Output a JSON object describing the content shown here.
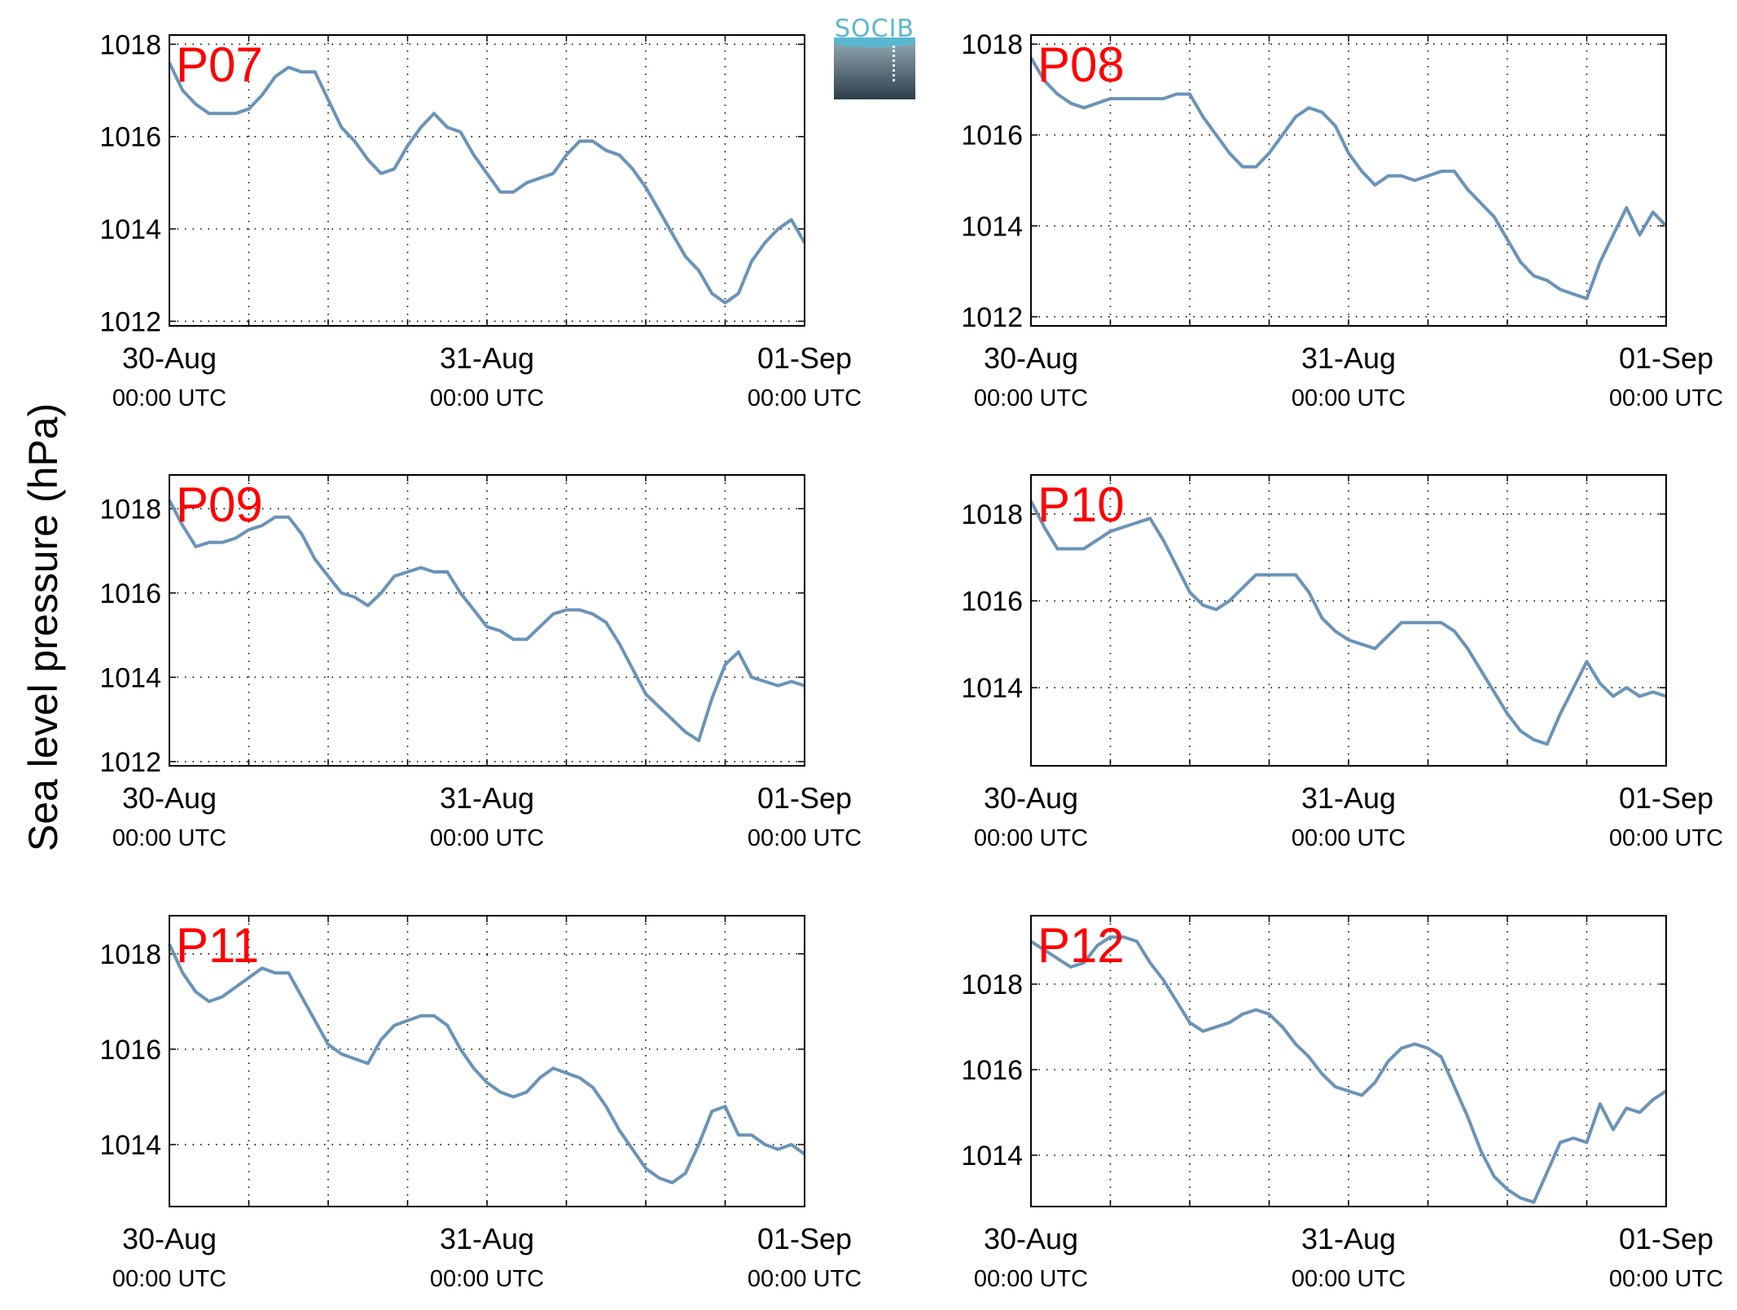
{
  "figure": {
    "ylabel": "Sea level pressure (hPa)",
    "logo_text": "SOCIB",
    "line_color": "#6a93b8",
    "label_color": "#ff0000"
  },
  "chart_data": [
    {
      "type": "line",
      "label": "P07",
      "x_ticks": [
        {
          "d": "30-Aug",
          "t": "00:00 UTC"
        },
        {
          "d": "31-Aug",
          "t": "00:00 UTC"
        },
        {
          "d": "01-Sep",
          "t": "00:00 UTC"
        }
      ],
      "y_ticks": [
        1012,
        1014,
        1016,
        1018
      ],
      "ylim": [
        1011.9,
        1018.2
      ],
      "xlim_hours": [
        0,
        48
      ],
      "x_hours": [
        0,
        1,
        2,
        3,
        4,
        5,
        6,
        7,
        8,
        9,
        10,
        11,
        12,
        13,
        14,
        15,
        16,
        17,
        18,
        19,
        20,
        21,
        22,
        23,
        24,
        25,
        26,
        27,
        28,
        29,
        30,
        31,
        32,
        33,
        34,
        35,
        36,
        37,
        38,
        39,
        40,
        41,
        42,
        43,
        44,
        45,
        46,
        47,
        48
      ],
      "values": [
        1017.6,
        1017.0,
        1016.7,
        1016.5,
        1016.5,
        1016.5,
        1016.6,
        1016.9,
        1017.3,
        1017.5,
        1017.4,
        1017.4,
        1016.8,
        1016.2,
        1015.9,
        1015.5,
        1015.2,
        1015.3,
        1015.8,
        1016.2,
        1016.5,
        1016.2,
        1016.1,
        1015.6,
        1015.2,
        1014.8,
        1014.8,
        1015.0,
        1015.1,
        1015.2,
        1015.6,
        1015.9,
        1015.9,
        1015.7,
        1015.6,
        1015.3,
        1014.9,
        1014.4,
        1013.9,
        1013.4,
        1013.1,
        1012.6,
        1012.4,
        1012.6,
        1013.3,
        1013.7,
        1014.0,
        1014.2,
        1013.7
      ]
    },
    {
      "type": "line",
      "label": "P08",
      "x_ticks": [
        {
          "d": "30-Aug",
          "t": "00:00 UTC"
        },
        {
          "d": "31-Aug",
          "t": "00:00 UTC"
        },
        {
          "d": "01-Sep",
          "t": "00:00 UTC"
        }
      ],
      "y_ticks": [
        1012,
        1014,
        1016,
        1018
      ],
      "ylim": [
        1011.8,
        1018.2
      ],
      "xlim_hours": [
        0,
        48
      ],
      "x_hours": [
        0,
        1,
        2,
        3,
        4,
        5,
        6,
        7,
        8,
        9,
        10,
        11,
        12,
        13,
        14,
        15,
        16,
        17,
        18,
        19,
        20,
        21,
        22,
        23,
        24,
        25,
        26,
        27,
        28,
        29,
        30,
        31,
        32,
        33,
        34,
        35,
        36,
        37,
        38,
        39,
        40,
        41,
        42,
        43,
        44,
        45,
        46,
        47,
        48
      ],
      "values": [
        1017.7,
        1017.2,
        1016.9,
        1016.7,
        1016.6,
        1016.7,
        1016.8,
        1016.8,
        1016.8,
        1016.8,
        1016.8,
        1016.9,
        1016.9,
        1016.4,
        1016.0,
        1015.6,
        1015.3,
        1015.3,
        1015.6,
        1016.0,
        1016.4,
        1016.6,
        1016.5,
        1016.2,
        1015.6,
        1015.2,
        1014.9,
        1015.1,
        1015.1,
        1015.0,
        1015.1,
        1015.2,
        1015.2,
        1014.8,
        1014.5,
        1014.2,
        1013.7,
        1013.2,
        1012.9,
        1012.8,
        1012.6,
        1012.5,
        1012.4,
        1013.2,
        1013.8,
        1014.4,
        1013.8,
        1014.3,
        1014.0
      ]
    },
    {
      "type": "line",
      "label": "P09",
      "x_ticks": [
        {
          "d": "30-Aug",
          "t": "00:00 UTC"
        },
        {
          "d": "31-Aug",
          "t": "00:00 UTC"
        },
        {
          "d": "01-Sep",
          "t": "00:00 UTC"
        }
      ],
      "y_ticks": [
        1012,
        1014,
        1016,
        1018
      ],
      "ylim": [
        1011.9,
        1018.8
      ],
      "xlim_hours": [
        0,
        48
      ],
      "x_hours": [
        0,
        1,
        2,
        3,
        4,
        5,
        6,
        7,
        8,
        9,
        10,
        11,
        12,
        13,
        14,
        15,
        16,
        17,
        18,
        19,
        20,
        21,
        22,
        23,
        24,
        25,
        26,
        27,
        28,
        29,
        30,
        31,
        32,
        33,
        34,
        35,
        36,
        37,
        38,
        39,
        40,
        41,
        42,
        43,
        44,
        45,
        46,
        47,
        48
      ],
      "values": [
        1018.2,
        1017.6,
        1017.1,
        1017.2,
        1017.2,
        1017.3,
        1017.5,
        1017.6,
        1017.8,
        1017.8,
        1017.4,
        1016.8,
        1016.4,
        1016.0,
        1015.9,
        1015.7,
        1016.0,
        1016.4,
        1016.5,
        1016.6,
        1016.5,
        1016.5,
        1016.0,
        1015.6,
        1015.2,
        1015.1,
        1014.9,
        1014.9,
        1015.2,
        1015.5,
        1015.6,
        1015.6,
        1015.5,
        1015.3,
        1014.8,
        1014.2,
        1013.6,
        1013.3,
        1013.0,
        1012.7,
        1012.5,
        1013.5,
        1014.3,
        1014.6,
        1014.0,
        1013.9,
        1013.8,
        1013.9,
        1013.8
      ]
    },
    {
      "type": "line",
      "label": "P10",
      "x_ticks": [
        {
          "d": "30-Aug",
          "t": "00:00 UTC"
        },
        {
          "d": "31-Aug",
          "t": "00:00 UTC"
        },
        {
          "d": "01-Sep",
          "t": "00:00 UTC"
        }
      ],
      "y_ticks": [
        1014,
        1016,
        1018
      ],
      "ylim": [
        1012.2,
        1018.9
      ],
      "xlim_hours": [
        0,
        48
      ],
      "x_hours": [
        0,
        1,
        2,
        3,
        4,
        5,
        6,
        7,
        8,
        9,
        10,
        11,
        12,
        13,
        14,
        15,
        16,
        17,
        18,
        19,
        20,
        21,
        22,
        23,
        24,
        25,
        26,
        27,
        28,
        29,
        30,
        31,
        32,
        33,
        34,
        35,
        36,
        37,
        38,
        39,
        40,
        41,
        42,
        43,
        44,
        45,
        46,
        47,
        48
      ],
      "values": [
        1018.3,
        1017.7,
        1017.2,
        1017.2,
        1017.2,
        1017.4,
        1017.6,
        1017.7,
        1017.8,
        1017.9,
        1017.4,
        1016.8,
        1016.2,
        1015.9,
        1015.8,
        1016.0,
        1016.3,
        1016.6,
        1016.6,
        1016.6,
        1016.6,
        1016.2,
        1015.6,
        1015.3,
        1015.1,
        1015.0,
        1014.9,
        1015.2,
        1015.5,
        1015.5,
        1015.5,
        1015.5,
        1015.3,
        1014.9,
        1014.4,
        1013.9,
        1013.4,
        1013.0,
        1012.8,
        1012.7,
        1013.4,
        1014.0,
        1014.6,
        1014.1,
        1013.8,
        1014.0,
        1013.8,
        1013.9,
        1013.8
      ]
    },
    {
      "type": "line",
      "label": "P11",
      "x_ticks": [
        {
          "d": "30-Aug",
          "t": "00:00 UTC"
        },
        {
          "d": "31-Aug",
          "t": "00:00 UTC"
        },
        {
          "d": "01-Sep",
          "t": "00:00 UTC"
        }
      ],
      "y_ticks": [
        1014,
        1016,
        1018
      ],
      "ylim": [
        1012.7,
        1018.8
      ],
      "xlim_hours": [
        0,
        48
      ],
      "x_hours": [
        0,
        1,
        2,
        3,
        4,
        5,
        6,
        7,
        8,
        9,
        10,
        11,
        12,
        13,
        14,
        15,
        16,
        17,
        18,
        19,
        20,
        21,
        22,
        23,
        24,
        25,
        26,
        27,
        28,
        29,
        30,
        31,
        32,
        33,
        34,
        35,
        36,
        37,
        38,
        39,
        40,
        41,
        42,
        43,
        44,
        45,
        46,
        47,
        48
      ],
      "values": [
        1018.2,
        1017.6,
        1017.2,
        1017.0,
        1017.1,
        1017.3,
        1017.5,
        1017.7,
        1017.6,
        1017.6,
        1017.1,
        1016.6,
        1016.1,
        1015.9,
        1015.8,
        1015.7,
        1016.2,
        1016.5,
        1016.6,
        1016.7,
        1016.7,
        1016.5,
        1016.0,
        1015.6,
        1015.3,
        1015.1,
        1015.0,
        1015.1,
        1015.4,
        1015.6,
        1015.5,
        1015.4,
        1015.2,
        1014.8,
        1014.3,
        1013.9,
        1013.5,
        1013.3,
        1013.2,
        1013.4,
        1014.0,
        1014.7,
        1014.8,
        1014.2,
        1014.2,
        1014.0,
        1013.9,
        1014.0,
        1013.8
      ]
    },
    {
      "type": "line",
      "label": "P12",
      "x_ticks": [
        {
          "d": "30-Aug",
          "t": "00:00 UTC"
        },
        {
          "d": "31-Aug",
          "t": "00:00 UTC"
        },
        {
          "d": "01-Sep",
          "t": "00:00 UTC"
        }
      ],
      "y_ticks": [
        1014,
        1016,
        1018
      ],
      "ylim": [
        1012.8,
        1019.6
      ],
      "xlim_hours": [
        0,
        48
      ],
      "x_hours": [
        0,
        1,
        2,
        3,
        4,
        5,
        6,
        7,
        8,
        9,
        10,
        11,
        12,
        13,
        14,
        15,
        16,
        17,
        18,
        19,
        20,
        21,
        22,
        23,
        24,
        25,
        26,
        27,
        28,
        29,
        30,
        31,
        32,
        33,
        34,
        35,
        36,
        37,
        38,
        39,
        40,
        41,
        42,
        43,
        44,
        45,
        46,
        47,
        48
      ],
      "values": [
        1019.0,
        1018.8,
        1018.6,
        1018.4,
        1018.5,
        1018.9,
        1019.1,
        1019.1,
        1019.0,
        1018.5,
        1018.1,
        1017.6,
        1017.1,
        1016.9,
        1017.0,
        1017.1,
        1017.3,
        1017.4,
        1017.3,
        1017.0,
        1016.6,
        1016.3,
        1015.9,
        1015.6,
        1015.5,
        1015.4,
        1015.7,
        1016.2,
        1016.5,
        1016.6,
        1016.5,
        1016.3,
        1015.6,
        1014.9,
        1014.1,
        1013.5,
        1013.2,
        1013.0,
        1012.9,
        1013.6,
        1014.3,
        1014.4,
        1014.3,
        1015.2,
        1014.6,
        1015.1,
        1015.0,
        1015.3,
        1015.5
      ]
    }
  ]
}
